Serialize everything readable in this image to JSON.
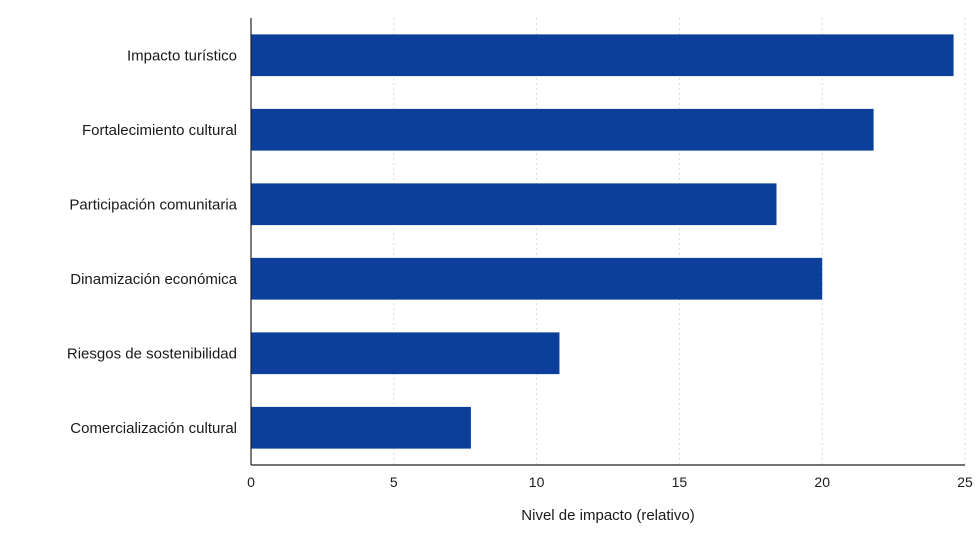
{
  "chart_data": {
    "type": "bar",
    "orientation": "horizontal",
    "categories": [
      "Impacto turístico",
      "Fortalecimiento cultural",
      "Participación comunitaria",
      "Dinamización económica",
      "Riesgos de sostenibilidad",
      "Comercialización cultural"
    ],
    "values": [
      24.6,
      21.8,
      18.4,
      20.0,
      10.8,
      7.7
    ],
    "xlabel": "Nivel de impacto (relativo)",
    "ylabel": "",
    "title": "",
    "xlim": [
      0,
      25
    ],
    "xticks": [
      "0",
      "5",
      "10",
      "15",
      "20",
      "25"
    ],
    "grid": "vertical dashed",
    "bar_color": "#0b3f9a"
  }
}
